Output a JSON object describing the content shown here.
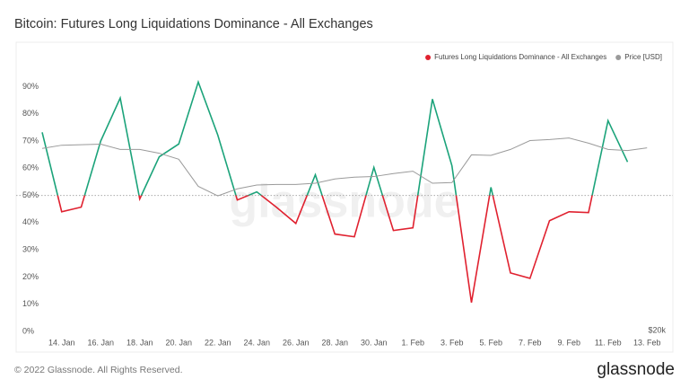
{
  "chart_data": {
    "type": "line",
    "title": "Bitcoin: Futures Long Liquidations Dominance - All Exchanges",
    "watermark": "glassnode",
    "footer": "© 2022 Glassnode. All Rights Reserved.",
    "logo": "glassnode",
    "categories": [
      null,
      "14. Jan",
      null,
      "16. Jan",
      null,
      "18. Jan",
      null,
      "20. Jan",
      null,
      "22. Jan",
      null,
      "24. Jan",
      null,
      "26. Jan",
      null,
      "28. Jan",
      null,
      "30. Jan",
      null,
      "1. Feb",
      null,
      "3. Feb",
      null,
      "5. Feb",
      null,
      "7. Feb",
      null,
      "9. Feb",
      null,
      "11. Feb",
      null,
      "13. Feb"
    ],
    "threshold": 50,
    "above_color": "#1ba37a",
    "below_color": "#e0212f",
    "series": [
      {
        "name": "Futures Long Liquidations Dominance - All Exchanges",
        "color": "#e0212f",
        "values": [
          73.2,
          44,
          45.7,
          70,
          85.8,
          48.7,
          64.2,
          68.9,
          91.7,
          72.2,
          48.3,
          51.3,
          45.7,
          39.7,
          57.6,
          35.8,
          34.8,
          60.3,
          37.1,
          38.1,
          85.4,
          60.9,
          10.6,
          53,
          21.5,
          19.5,
          40.7,
          44,
          43.7,
          77.5,
          62.3,
          null
        ]
      },
      {
        "name": "Price [USD]",
        "color": "#9a9a9a",
        "axis": "y2",
        "values": [
          43900,
          44500,
          44600,
          44700,
          43700,
          43700,
          43000,
          41900,
          37300,
          35800,
          36900,
          37500,
          37600,
          37600,
          37800,
          38500,
          38800,
          38900,
          39400,
          39800,
          37800,
          37900,
          42700,
          42600,
          43700,
          45400,
          45600,
          45900,
          44900,
          43700,
          43500,
          44000
        ]
      }
    ],
    "ylim": [
      0,
      106
    ],
    "yticks": [
      {
        "value": 0,
        "label": "0%"
      },
      {
        "value": 10,
        "label": "10%"
      },
      {
        "value": 20,
        "label": "20%"
      },
      {
        "value": 30,
        "label": "30%"
      },
      {
        "value": 40,
        "label": "40%"
      },
      {
        "value": 50,
        "label": "50%"
      },
      {
        "value": 60,
        "label": "60%"
      },
      {
        "value": 70,
        "label": "70%"
      },
      {
        "value": 80,
        "label": "80%"
      },
      {
        "value": 90,
        "label": "90%"
      }
    ],
    "y2lim": [
      20000,
      69000
    ],
    "y2_log": true,
    "y2ticks": [
      {
        "value": 20000,
        "label": "$20k"
      }
    ],
    "grid": false,
    "legend": "top-right"
  }
}
